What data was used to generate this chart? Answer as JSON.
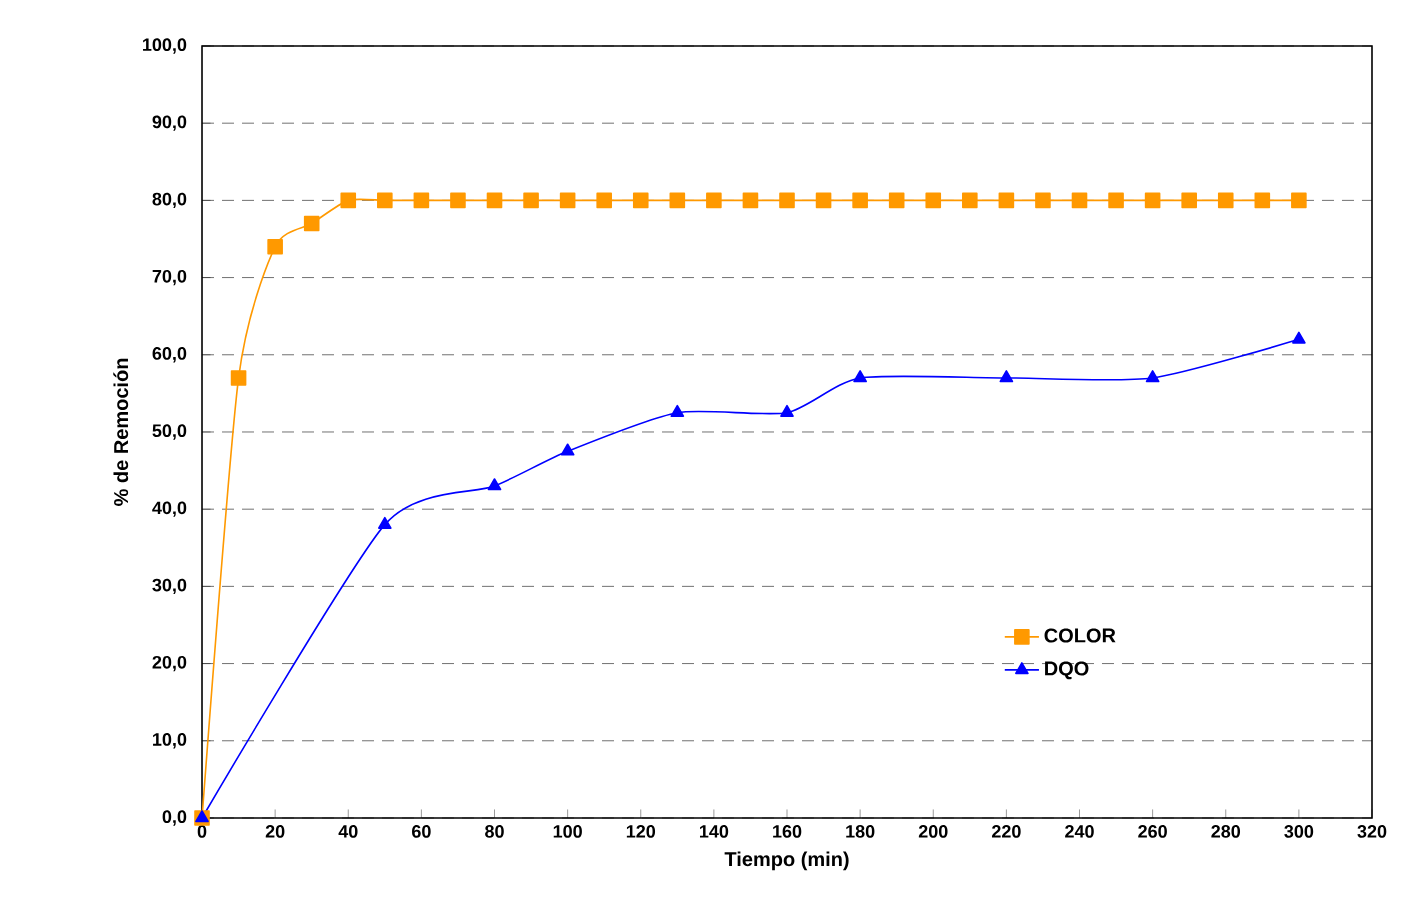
{
  "chart_data": {
    "type": "line",
    "xlabel": "Tiempo (min)",
    "ylabel": "% de Remoción",
    "xlim": [
      0,
      320
    ],
    "xticks": [
      0,
      20,
      40,
      60,
      80,
      100,
      120,
      140,
      160,
      180,
      200,
      220,
      240,
      260,
      280,
      300,
      320
    ],
    "ylim": [
      0,
      100
    ],
    "yticks": [
      {
        "value": 0,
        "label": "0,0"
      },
      {
        "value": 10,
        "label": "10,0"
      },
      {
        "value": 20,
        "label": "20,0"
      },
      {
        "value": 30,
        "label": "30,0"
      },
      {
        "value": 40,
        "label": "40,0"
      },
      {
        "value": 50,
        "label": "50,0"
      },
      {
        "value": 60,
        "label": "60,0"
      },
      {
        "value": 70,
        "label": "70,0"
      },
      {
        "value": 80,
        "label": "80,0"
      },
      {
        "value": 90,
        "label": "90,0"
      },
      {
        "value": 100,
        "label": "100,0"
      }
    ],
    "grid": "y",
    "legend": "bottom right",
    "line_style": "solid",
    "series": [
      {
        "name": "COLOR",
        "color": "#ff9900",
        "marker": "square",
        "x": [
          0,
          10,
          20,
          30,
          40,
          50,
          60,
          70,
          80,
          90,
          100,
          110,
          120,
          130,
          140,
          150,
          160,
          170,
          180,
          190,
          200,
          210,
          220,
          230,
          240,
          250,
          260,
          270,
          280,
          290,
          300
        ],
        "values": [
          0,
          57,
          74,
          77,
          80,
          80,
          80,
          80,
          80,
          80,
          80,
          80,
          80,
          80,
          80,
          80,
          80,
          80,
          80,
          80,
          80,
          80,
          80,
          80,
          80,
          80,
          80,
          80,
          80,
          80,
          80
        ]
      },
      {
        "name": "DQO",
        "color": "#0000ff",
        "marker": "triangle",
        "x": [
          0,
          50,
          80,
          100,
          130,
          160,
          180,
          220,
          260,
          300
        ],
        "values": [
          0,
          38,
          43,
          47.5,
          52.5,
          52.5,
          57,
          57,
          57,
          62
        ]
      }
    ]
  }
}
